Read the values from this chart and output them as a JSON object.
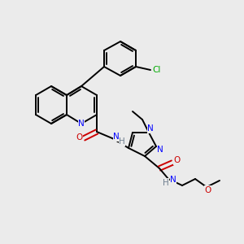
{
  "background_color": "#ebebeb",
  "colors": {
    "C": "#000000",
    "N": "#0000ff",
    "O": "#cc0000",
    "Cl": "#00aa00",
    "H": "#708090"
  },
  "lw": 1.4,
  "fs": 7.5
}
